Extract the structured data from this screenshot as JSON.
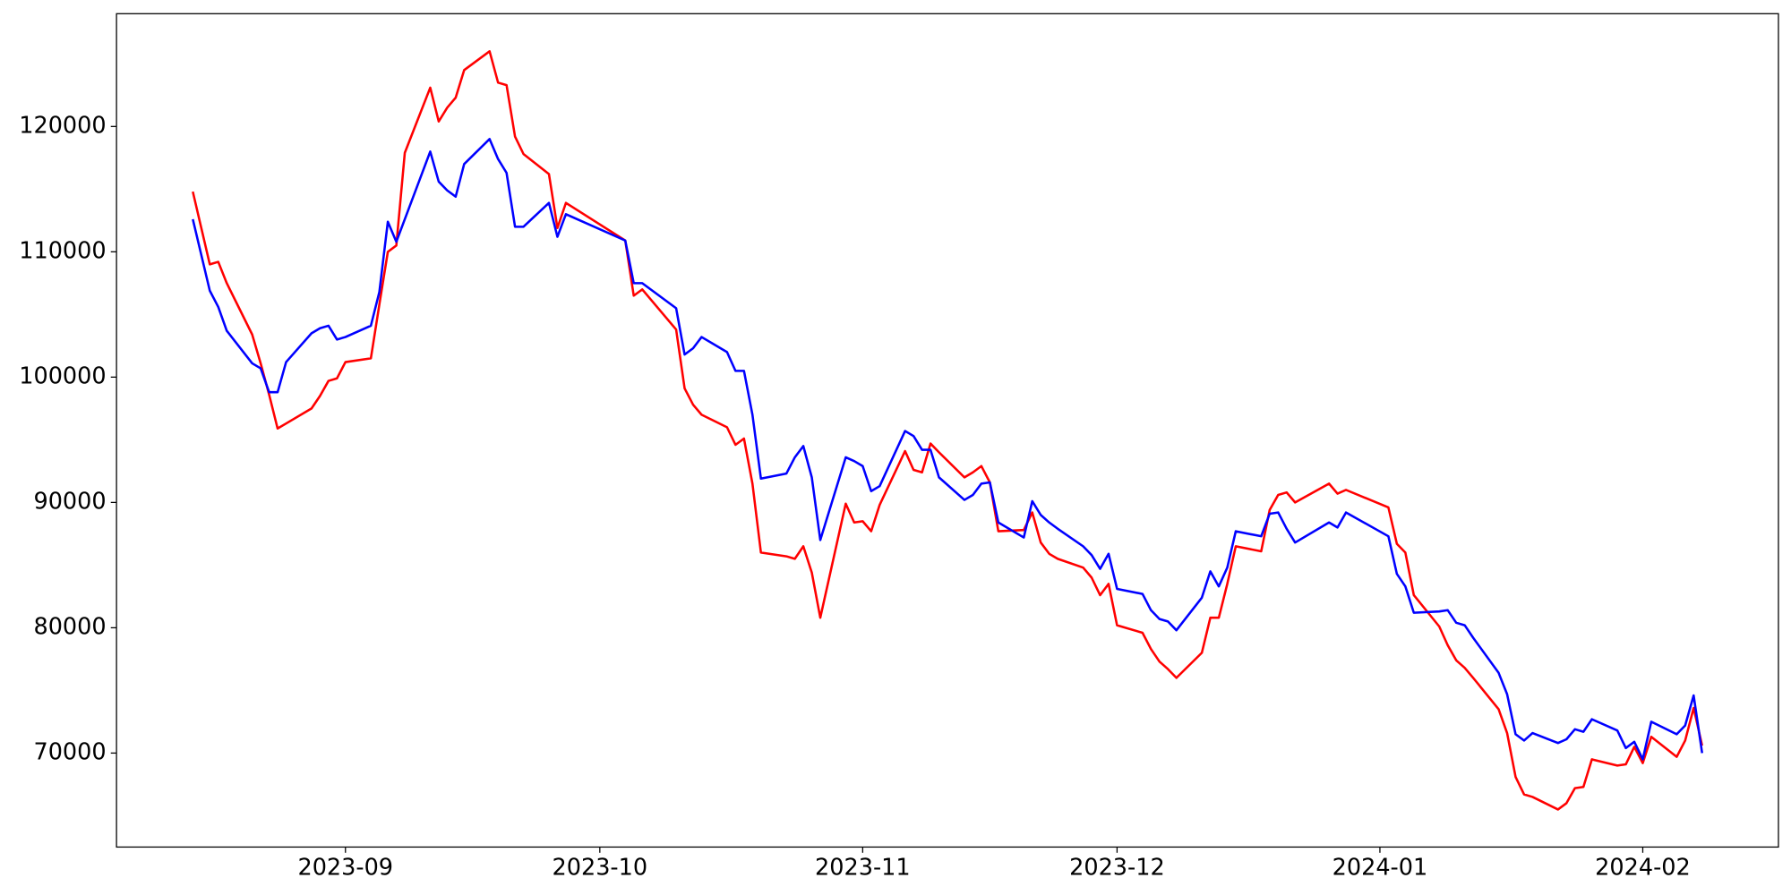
{
  "chart_data": {
    "type": "line",
    "x": [
      "2023-08-14",
      "2023-08-16",
      "2023-08-17",
      "2023-08-18",
      "2023-08-21",
      "2023-08-22",
      "2023-08-23",
      "2023-08-24",
      "2023-08-25",
      "2023-08-28",
      "2023-08-29",
      "2023-08-30",
      "2023-08-31",
      "2023-09-01",
      "2023-09-04",
      "2023-09-05",
      "2023-09-06",
      "2023-09-07",
      "2023-09-08",
      "2023-09-11",
      "2023-09-12",
      "2023-09-13",
      "2023-09-14",
      "2023-09-15",
      "2023-09-18",
      "2023-09-19",
      "2023-09-20",
      "2023-09-21",
      "2023-09-22",
      "2023-09-25",
      "2023-09-26",
      "2023-09-27",
      "2023-10-04",
      "2023-10-05",
      "2023-10-06",
      "2023-10-10",
      "2023-10-11",
      "2023-10-12",
      "2023-10-13",
      "2023-10-16",
      "2023-10-17",
      "2023-10-18",
      "2023-10-19",
      "2023-10-20",
      "2023-10-23",
      "2023-10-24",
      "2023-10-25",
      "2023-10-26",
      "2023-10-27",
      "2023-10-30",
      "2023-10-31",
      "2023-11-01",
      "2023-11-02",
      "2023-11-03",
      "2023-11-06",
      "2023-11-07",
      "2023-11-08",
      "2023-11-09",
      "2023-11-10",
      "2023-11-13",
      "2023-11-14",
      "2023-11-15",
      "2023-11-16",
      "2023-11-17",
      "2023-11-20",
      "2023-11-21",
      "2023-11-22",
      "2023-11-23",
      "2023-11-24",
      "2023-11-27",
      "2023-11-28",
      "2023-11-29",
      "2023-11-30",
      "2023-12-01",
      "2023-12-04",
      "2023-12-05",
      "2023-12-06",
      "2023-12-07",
      "2023-12-08",
      "2023-12-11",
      "2023-12-12",
      "2023-12-13",
      "2023-12-14",
      "2023-12-15",
      "2023-12-18",
      "2023-12-19",
      "2023-12-20",
      "2023-12-21",
      "2023-12-22",
      "2023-12-26",
      "2023-12-27",
      "2023-12-28",
      "2024-01-02",
      "2024-01-03",
      "2024-01-04",
      "2024-01-05",
      "2024-01-08",
      "2024-01-09",
      "2024-01-10",
      "2024-01-11",
      "2024-01-12",
      "2024-01-15",
      "2024-01-16",
      "2024-01-17",
      "2024-01-18",
      "2024-01-19",
      "2024-01-22",
      "2024-01-23",
      "2024-01-24",
      "2024-01-25",
      "2024-01-26",
      "2024-01-29",
      "2024-01-30",
      "2024-01-31",
      "2024-02-01",
      "2024-02-02",
      "2024-02-05",
      "2024-02-06",
      "2024-02-07",
      "2024-02-08"
    ],
    "series": [
      {
        "color": "#ff0000",
        "values": [
          114800,
          109000,
          109200,
          107500,
          103400,
          101100,
          98600,
          95900,
          96300,
          97500,
          98500,
          99700,
          99900,
          101200,
          101500,
          105800,
          110000,
          110500,
          117900,
          123100,
          120400,
          121500,
          122300,
          124500,
          126000,
          123500,
          123300,
          119200,
          117800,
          116200,
          111900,
          113900,
          110900,
          106500,
          107000,
          103800,
          99100,
          97800,
          97000,
          96000,
          94600,
          95100,
          91500,
          86000,
          85700,
          85500,
          86500,
          84400,
          80800,
          89900,
          88400,
          88500,
          87700,
          89800,
          94100,
          92600,
          92400,
          94700,
          94000,
          92000,
          92400,
          92900,
          91600,
          87700,
          87800,
          89200,
          86800,
          85900,
          85500,
          84800,
          84000,
          82600,
          83500,
          80200,
          79600,
          78300,
          77300,
          76700,
          76000,
          78000,
          80800,
          80800,
          83500,
          86500,
          86100,
          89400,
          90600,
          90800,
          90000,
          91500,
          90700,
          91000,
          89600,
          86700,
          86000,
          82600,
          80100,
          78600,
          77400,
          76800,
          76000,
          73500,
          71600,
          68100,
          66700,
          66500,
          65500,
          66000,
          67200,
          67300,
          69500,
          69000,
          69100,
          70500,
          69200,
          71300,
          69700,
          71000,
          73600,
          70600
        ]
      },
      {
        "color": "#0000ff",
        "values": [
          112600,
          106900,
          105600,
          103700,
          101100,
          100700,
          98800,
          98800,
          101200,
          103500,
          103900,
          104100,
          103000,
          103200,
          104100,
          106800,
          112400,
          110800,
          112600,
          118000,
          115600,
          114900,
          114400,
          117000,
          119000,
          117400,
          116300,
          112000,
          112000,
          113900,
          111200,
          113000,
          110900,
          107500,
          107500,
          105500,
          101800,
          102300,
          103200,
          102000,
          100500,
          100500,
          97000,
          91900,
          92300,
          93600,
          94500,
          92000,
          87000,
          93600,
          93300,
          92900,
          90900,
          91300,
          95700,
          95300,
          94200,
          94200,
          92000,
          90200,
          90600,
          91500,
          91600,
          88400,
          87200,
          90100,
          89000,
          88400,
          87900,
          86500,
          85800,
          84700,
          85900,
          83100,
          82700,
          81400,
          80700,
          80500,
          79800,
          82400,
          84500,
          83300,
          84800,
          87700,
          87300,
          89100,
          89200,
          87900,
          86800,
          88400,
          88000,
          89200,
          87300,
          84300,
          83300,
          81200,
          81300,
          81400,
          80400,
          80200,
          79200,
          76400,
          74700,
          71500,
          71000,
          71600,
          70800,
          71100,
          71900,
          71700,
          72700,
          71800,
          70400,
          70900,
          69500,
          72500,
          71500,
          72200,
          74600,
          70000
        ]
      }
    ],
    "xlim": [
      "2023-08-05",
      "2024-02-17"
    ],
    "xticks": [
      {
        "value": "2023-09-01",
        "label": "2023-09"
      },
      {
        "value": "2023-10-01",
        "label": "2023-10"
      },
      {
        "value": "2023-11-01",
        "label": "2023-11"
      },
      {
        "value": "2023-12-01",
        "label": "2023-12"
      },
      {
        "value": "2024-01-01",
        "label": "2024-01"
      },
      {
        "value": "2024-02-01",
        "label": "2024-02"
      }
    ],
    "ylim": [
      62500,
      129000
    ],
    "yticks": [
      70000,
      80000,
      90000,
      100000,
      110000,
      120000
    ],
    "grid": false
  }
}
